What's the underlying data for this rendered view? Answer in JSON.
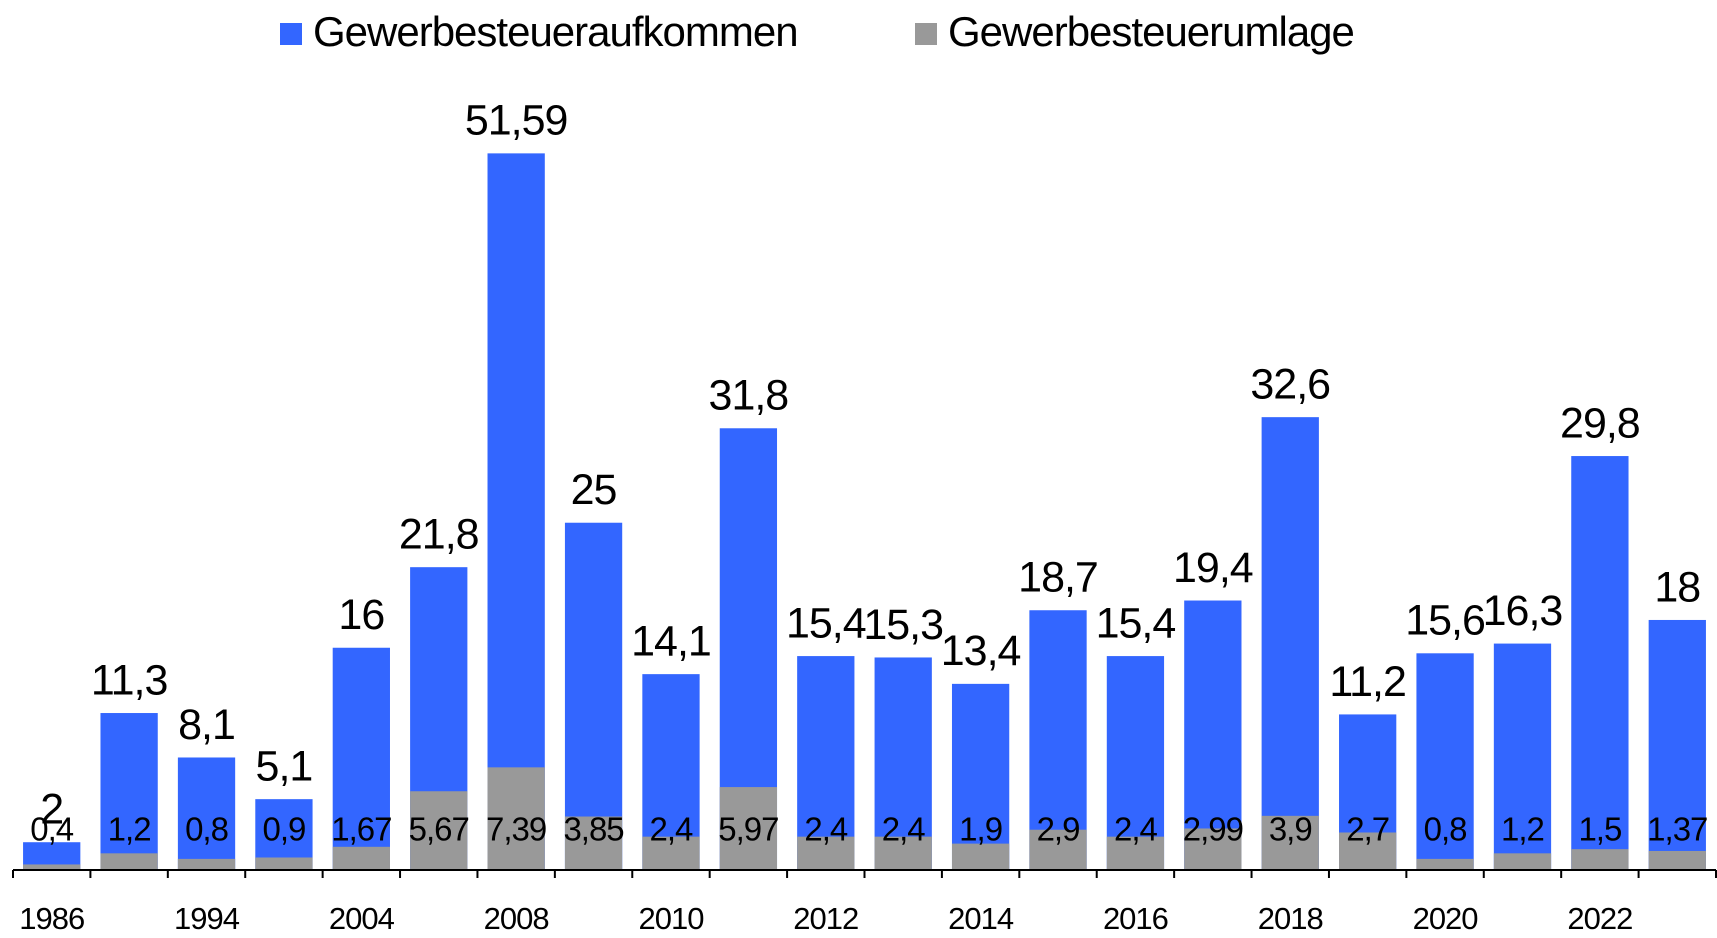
{
  "chart_data": {
    "type": "overlapping-bar",
    "categories": [
      "1986",
      null,
      "1994",
      null,
      "2004",
      null,
      "2008",
      null,
      "2010",
      null,
      "2012",
      null,
      "2014",
      null,
      "2016",
      null,
      "2018",
      null,
      "2020",
      null,
      "2022",
      null
    ],
    "series": [
      {
        "name": "Gewerbesteueraufkommen",
        "color": "#3366ff",
        "values": [
          2,
          11.3,
          8.1,
          5.1,
          16,
          21.8,
          51.59,
          25,
          14.1,
          31.8,
          15.4,
          15.3,
          13.4,
          18.7,
          15.4,
          19.4,
          32.6,
          11.2,
          15.6,
          16.3,
          29.8,
          18
        ],
        "value_labels": [
          "2",
          "11,3",
          "8,1",
          "5,1",
          "16",
          "21,8",
          "51,59",
          "25",
          "14,1",
          "31,8",
          "15,4",
          "15,3",
          "13,4",
          "18,7",
          "15,4",
          "19,4",
          "32,6",
          "11,2",
          "15,6",
          "16,3",
          "29,8",
          "18"
        ]
      },
      {
        "name": "Gewerbesteuerumlage",
        "color": "#999999",
        "values": [
          0.4,
          1.2,
          0.8,
          0.9,
          1.67,
          5.67,
          7.39,
          3.85,
          2.4,
          5.97,
          2.4,
          2.4,
          1.9,
          2.9,
          2.4,
          2.99,
          3.9,
          2.7,
          0.8,
          1.2,
          1.5,
          1.37
        ],
        "value_labels": [
          "0,4",
          "1,2",
          "0,8",
          "0,9",
          "1,67",
          "5,67",
          "7,39",
          "3,85",
          "2,4",
          "5,97",
          "2,4",
          "2,4",
          "1,9",
          "2,9",
          "2,4",
          "2,99",
          "3,9",
          "2,7",
          "0,8",
          "1,2",
          "1,5",
          "1,37"
        ]
      }
    ],
    "ylim": [
      0,
      55
    ]
  }
}
